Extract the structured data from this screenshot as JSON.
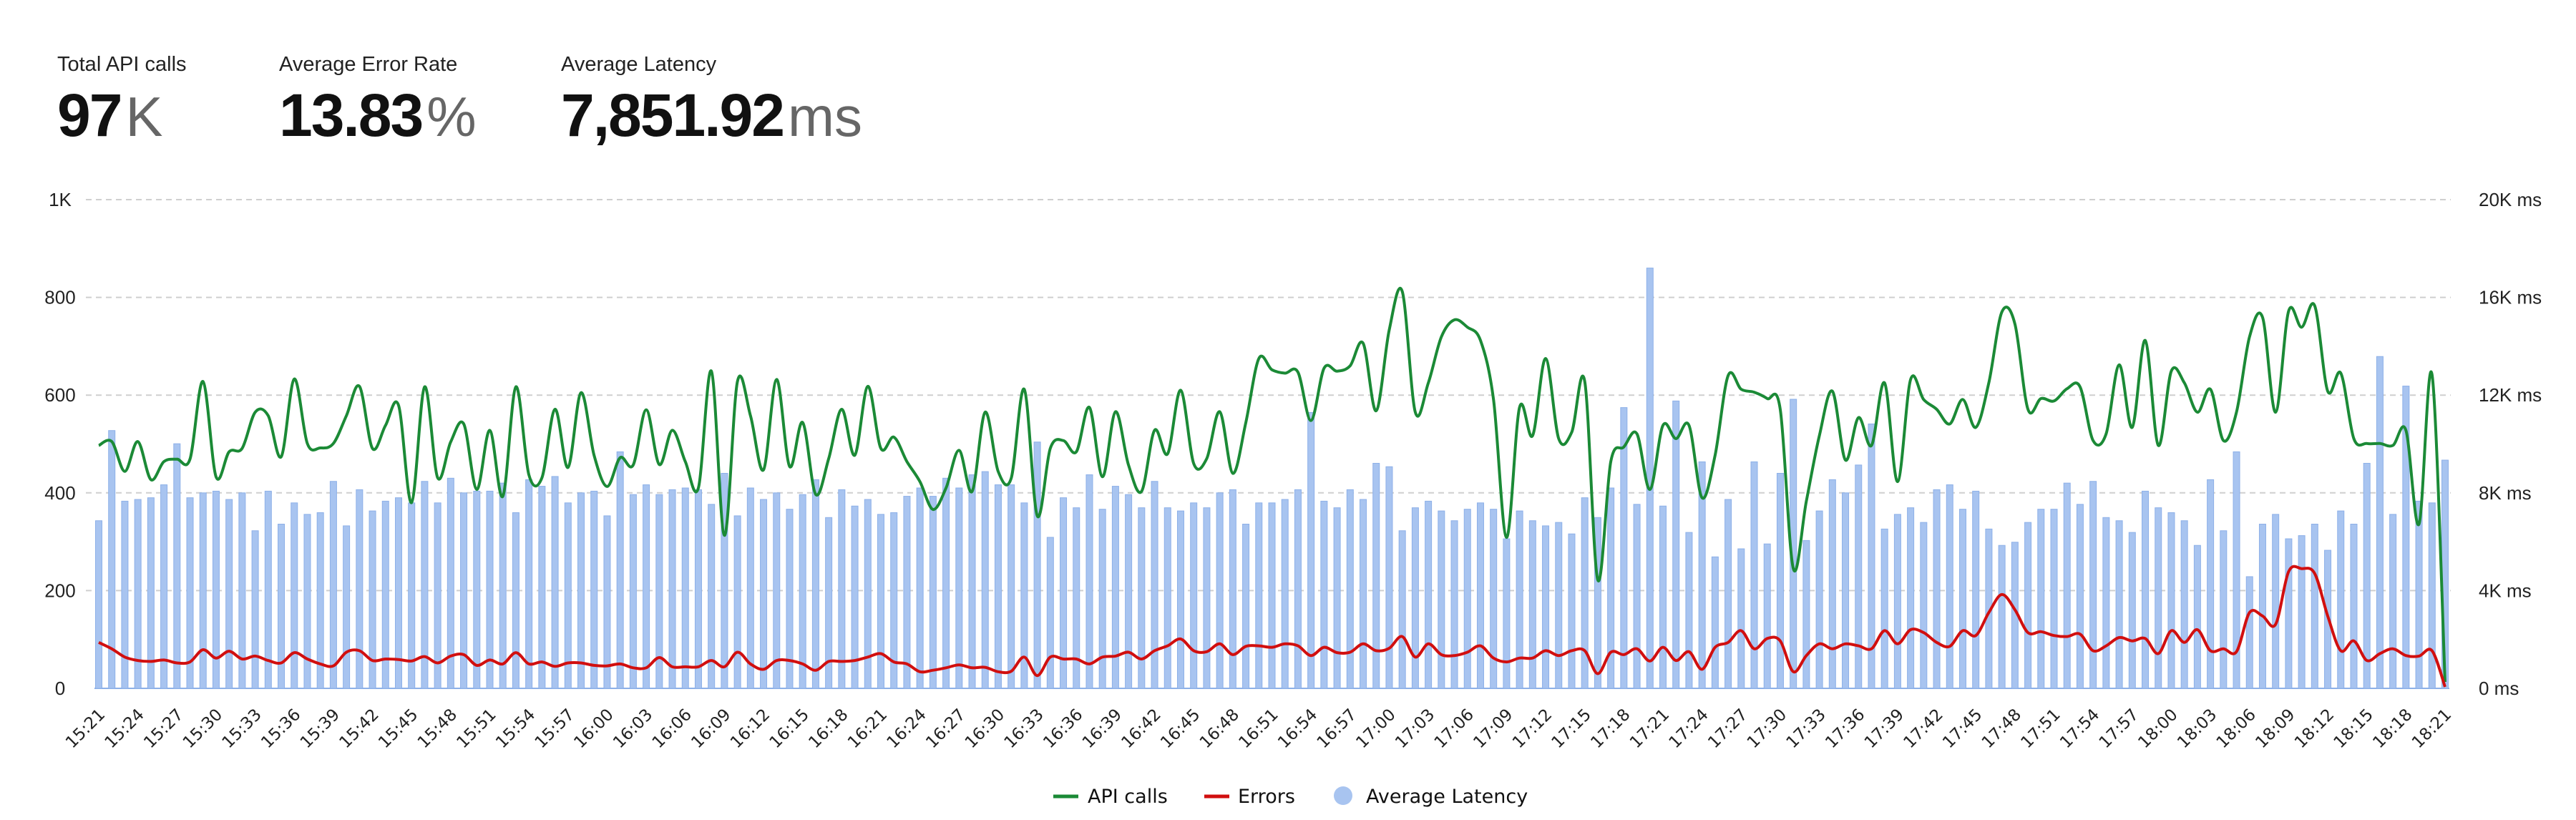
{
  "kpis": [
    {
      "label": "Total API calls",
      "value": "97",
      "unit": "K"
    },
    {
      "label": "Average Error Rate",
      "value": "13.83",
      "unit": "%"
    },
    {
      "label": "Average Latency",
      "value": "7,851.92",
      "unit": "ms"
    }
  ],
  "chart_data": {
    "type": "bar+line",
    "title": "",
    "xlabel": "",
    "ylabel_left": "",
    "ylabel_right": "",
    "left_axis": {
      "range": [
        0,
        1000
      ],
      "tick_values": [
        0,
        200,
        400,
        600,
        800,
        1000
      ],
      "tick_labels": [
        "0",
        "200",
        "400",
        "600",
        "800",
        "1K"
      ]
    },
    "right_axis": {
      "range": [
        0,
        20000
      ],
      "unit": "ms",
      "tick_values": [
        0,
        4000,
        8000,
        12000,
        16000,
        20000
      ],
      "tick_labels": [
        "0 ms",
        "4K ms",
        "8K ms",
        "12K ms",
        "16K ms",
        "20K ms"
      ]
    },
    "x_tick_labels": [
      "15:21",
      "15:24",
      "15:27",
      "15:30",
      "15:33",
      "15:36",
      "15:39",
      "15:42",
      "15:45",
      "15:48",
      "15:51",
      "15:54",
      "15:57",
      "16:00",
      "16:03",
      "16:06",
      "16:09",
      "16:12",
      "16:15",
      "16:18",
      "16:21",
      "16:24",
      "16:27",
      "16:30",
      "16:33",
      "16:36",
      "16:39",
      "16:42",
      "16:45",
      "16:48",
      "16:51",
      "16:54",
      "16:57",
      "17:00",
      "17:03",
      "17:06",
      "17:09",
      "17:12",
      "17:15",
      "17:18",
      "17:21",
      "17:24",
      "17:27",
      "17:30",
      "17:33",
      "17:36",
      "17:39",
      "17:42",
      "17:45",
      "17:48",
      "17:51",
      "17:54",
      "17:57",
      "18:00",
      "18:03",
      "18:06",
      "18:09",
      "18:12",
      "18:15",
      "18:18",
      "18:21"
    ],
    "grid": true,
    "legend": "bottom-center",
    "colors": {
      "api_calls": "#1b8a36",
      "errors": "#d10f0f",
      "latency": "#a8c4f0",
      "latency_edge": "#8db0e8",
      "grid": "#cfcfcf"
    },
    "series": [
      {
        "name": "API calls",
        "type": "line",
        "axis": "left",
        "values": [
          497,
          505,
          444,
          505,
          427,
          464,
          469,
          469,
          628,
          433,
          484,
          491,
          565,
          558,
          474,
          633,
          501,
          492,
          501,
          558,
          618,
          491,
          538,
          579,
          380,
          617,
          431,
          504,
          541,
          407,
          528,
          393,
          617,
          437,
          431,
          571,
          452,
          605,
          477,
          413,
          472,
          457,
          570,
          458,
          528,
          464,
          410,
          649,
          313,
          628,
          558,
          447,
          632,
          454,
          544,
          397,
          470,
          571,
          477,
          618,
          491,
          514,
          464,
          423,
          366,
          410,
          487,
          403,
          565,
          444,
          430,
          612,
          353,
          491,
          507,
          484,
          575,
          433,
          566,
          457,
          403,
          528,
          480,
          610,
          460,
          470,
          566,
          440,
          544,
          675,
          652,
          645,
          647,
          548,
          655,
          649,
          660,
          706,
          568,
          733,
          812,
          565,
          625,
          719,
          754,
          739,
          712,
          591,
          309,
          575,
          517,
          675,
          511,
          524,
          628,
          222,
          464,
          494,
          521,
          407,
          538,
          511,
          538,
          390,
          477,
          640,
          612,
          606,
          593,
          571,
          245,
          383,
          517,
          608,
          467,
          554,
          497,
          625,
          423,
          632,
          591,
          571,
          541,
          591,
          534,
          625,
          770,
          746,
          571,
          593,
          588,
          613,
          617,
          507,
          521,
          662,
          534,
          712,
          497,
          649,
          625,
          565,
          612,
          507,
          565,
          719,
          759,
          565,
          772,
          739,
          783,
          608,
          645,
          511,
          501,
          501,
          497,
          528,
          336,
          642,
          13
        ]
      },
      {
        "name": "Errors",
        "type": "line",
        "axis": "left",
        "values": [
          94,
          81,
          64,
          57,
          55,
          58,
          52,
          54,
          79,
          62,
          76,
          60,
          66,
          57,
          52,
          73,
          60,
          50,
          46,
          74,
          77,
          57,
          60,
          59,
          56,
          65,
          52,
          66,
          69,
          47,
          58,
          50,
          73,
          50,
          54,
          45,
          52,
          52,
          47,
          46,
          50,
          42,
          42,
          63,
          44,
          44,
          44,
          57,
          44,
          74,
          50,
          39,
          57,
          57,
          50,
          37,
          55,
          55,
          57,
          64,
          71,
          54,
          50,
          34,
          37,
          42,
          48,
          42,
          43,
          34,
          35,
          64,
          26,
          64,
          60,
          60,
          50,
          64,
          66,
          74,
          60,
          77,
          87,
          101,
          77,
          75,
          91,
          69,
          86,
          87,
          84,
          91,
          87,
          67,
          84,
          73,
          74,
          91,
          77,
          82,
          106,
          64,
          91,
          69,
          67,
          74,
          87,
          62,
          54,
          62,
          62,
          77,
          67,
          77,
          77,
          30,
          74,
          69,
          81,
          56,
          84,
          57,
          75,
          39,
          84,
          94,
          118,
          81,
          102,
          97,
          34,
          67,
          91,
          81,
          91,
          87,
          81,
          118,
          91,
          120,
          114,
          94,
          86,
          118,
          108,
          155,
          192,
          161,
          114,
          116,
          108,
          106,
          111,
          77,
          87,
          104,
          97,
          102,
          71,
          118,
          94,
          120,
          77,
          81,
          75,
          155,
          148,
          131,
          239,
          245,
          235,
          148,
          77,
          97,
          57,
          71,
          81,
          67,
          66,
          77,
          3
        ]
      },
      {
        "name": "Average Latency",
        "type": "bar",
        "axis": "right",
        "values": [
          6860,
          10550,
          7660,
          7730,
          7800,
          8330,
          10010,
          7800,
          8000,
          8070,
          7730,
          8000,
          6450,
          8070,
          6720,
          7590,
          7120,
          7190,
          8470,
          6650,
          8130,
          7260,
          7660,
          7800,
          7590,
          8470,
          7590,
          8600,
          8000,
          8070,
          8070,
          8400,
          7190,
          8540,
          8270,
          8670,
          7590,
          8000,
          8070,
          7060,
          9680,
          7930,
          8330,
          7930,
          8130,
          8200,
          8130,
          7530,
          8800,
          7060,
          8200,
          7730,
          8000,
          7330,
          7930,
          8540,
          6990,
          8130,
          7460,
          7730,
          7120,
          7190,
          7860,
          8200,
          7860,
          8600,
          8200,
          8740,
          8870,
          8330,
          8330,
          7590,
          10080,
          6180,
          7800,
          7390,
          8740,
          7330,
          8270,
          7930,
          7390,
          8470,
          7390,
          7260,
          7590,
          7390,
          8000,
          8130,
          6720,
          7590,
          7590,
          7730,
          8130,
          11290,
          7660,
          7390,
          8130,
          7730,
          9210,
          9070,
          6450,
          7390,
          7660,
          7260,
          6860,
          7330,
          7590,
          7330,
          6120,
          7260,
          6860,
          6650,
          6790,
          6320,
          7800,
          6990,
          8200,
          11490,
          7530,
          17200,
          7460,
          11760,
          6380,
          9270,
          5380,
          7730,
          5710,
          9270,
          5910,
          8800,
          11830,
          6050,
          7260,
          8540,
          8000,
          9140,
          10820,
          6520,
          7120,
          7390,
          6790,
          8130,
          8330,
          7330,
          8070,
          6520,
          5850,
          5980,
          6790,
          7330,
          7330,
          8400,
          7530,
          8470,
          6990,
          6860,
          6380,
          8070,
          7390,
          7190,
          6860,
          5850,
          8540,
          6450,
          9680,
          4570,
          6720,
          7120,
          6120,
          6250,
          6720,
          5650,
          7260,
          6720,
          9210,
          13580,
          7120,
          12370,
          7660,
          7590,
          9340
        ]
      }
    ]
  }
}
